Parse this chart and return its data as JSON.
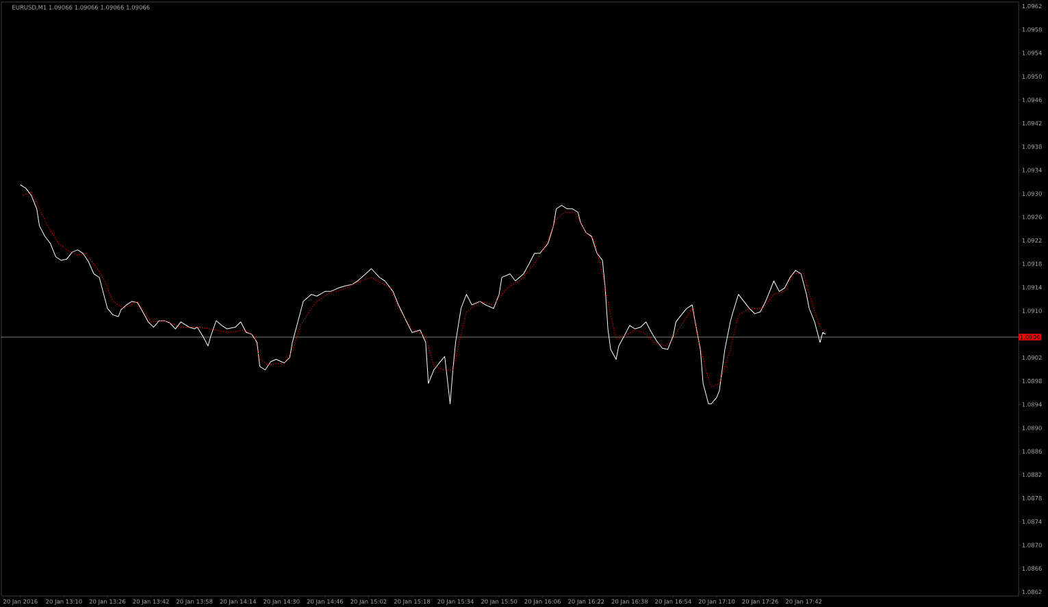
{
  "chart_data": {
    "type": "line",
    "title": "EURUSD,M1  1.09066 1.09066 1.09066 1.09066",
    "xlim": [
      "2016-01-20T12:47",
      "2016-01-20T19:01"
    ],
    "xticks": [
      {
        "value": "2016-01-20T12:54",
        "label": "20 Jan 2016"
      },
      {
        "value": "2016-01-20T13:10",
        "label": "20 Jan 13:10"
      },
      {
        "value": "2016-01-20T13:26",
        "label": "20 Jan 13:26"
      },
      {
        "value": "2016-01-20T13:42",
        "label": "20 Jan 13:42"
      },
      {
        "value": "2016-01-20T13:58",
        "label": "20 Jan 13:58"
      },
      {
        "value": "2016-01-20T14:14",
        "label": "20 Jan 14:14"
      },
      {
        "value": "2016-01-20T14:30",
        "label": "20 Jan 14:30"
      },
      {
        "value": "2016-01-20T14:46",
        "label": "20 Jan 14:46"
      },
      {
        "value": "2016-01-20T15:02",
        "label": "20 Jan 15:02"
      },
      {
        "value": "2016-01-20T15:18",
        "label": "20 Jan 15:18"
      },
      {
        "value": "2016-01-20T15:34",
        "label": "20 Jan 15:34"
      },
      {
        "value": "2016-01-20T15:50",
        "label": "20 Jan 15:50"
      },
      {
        "value": "2016-01-20T16:06",
        "label": "20 Jan 16:06"
      },
      {
        "value": "2016-01-20T16:22",
        "label": "20 Jan 16:22"
      },
      {
        "value": "2016-01-20T16:38",
        "label": "20 Jan 16:38"
      },
      {
        "value": "2016-01-20T16:54",
        "label": "20 Jan 16:54"
      },
      {
        "value": "2016-01-20T17:10",
        "label": "20 Jan 17:10"
      },
      {
        "value": "2016-01-20T17:26",
        "label": "20 Jan 17:26"
      },
      {
        "value": "2016-01-20T17:42",
        "label": "20 Jan 17:42"
      }
    ],
    "ylim": [
      1.08618,
      1.09632
    ],
    "yticks": [
      {
        "value": 1.09625,
        "label": "1.0962"
      },
      {
        "value": 1.09585,
        "label": "1.0958"
      },
      {
        "value": 1.09545,
        "label": "1.0954"
      },
      {
        "value": 1.09505,
        "label": "1.0950"
      },
      {
        "value": 1.09465,
        "label": "1.0946"
      },
      {
        "value": 1.09425,
        "label": "1.0942"
      },
      {
        "value": 1.09385,
        "label": "1.0938"
      },
      {
        "value": 1.09345,
        "label": "1.0934"
      },
      {
        "value": 1.09305,
        "label": "1.0930"
      },
      {
        "value": 1.09265,
        "label": "1.0926"
      },
      {
        "value": 1.09225,
        "label": "1.0922"
      },
      {
        "value": 1.09185,
        "label": "1.0918"
      },
      {
        "value": 1.09145,
        "label": "1.0914"
      },
      {
        "value": 1.09105,
        "label": "1.0910"
      },
      {
        "value": 1.09025,
        "label": "1.0902"
      },
      {
        "value": 1.08985,
        "label": "1.0898"
      },
      {
        "value": 1.08945,
        "label": "1.0894"
      },
      {
        "value": 1.08905,
        "label": "1.0890"
      },
      {
        "value": 1.08865,
        "label": "1.0886"
      },
      {
        "value": 1.08825,
        "label": "1.0882"
      },
      {
        "value": 1.08785,
        "label": "1.0878"
      },
      {
        "value": 1.08745,
        "label": "1.0874"
      },
      {
        "value": 1.08705,
        "label": "1.0870"
      },
      {
        "value": 1.08665,
        "label": "1.0866"
      },
      {
        "value": 1.08625,
        "label": "1.0862"
      }
    ],
    "ref_lines": [
      {
        "axis": "y",
        "value": 1.0906,
        "label": "1.0906",
        "color": "#999999"
      }
    ],
    "series": [
      {
        "color": "#ffffff",
        "line_style": "solid",
        "x": [
          "2016-01-20T12:54",
          "2016-01-20T12:56",
          "2016-01-20T12:58",
          "2016-01-20T13:00",
          "2016-01-20T13:01",
          "2016-01-20T13:03",
          "2016-01-20T13:05",
          "2016-01-20T13:07",
          "2016-01-20T13:09",
          "2016-01-20T13:11",
          "2016-01-20T13:13",
          "2016-01-20T13:15",
          "2016-01-20T13:17",
          "2016-01-20T13:19",
          "2016-01-20T13:21",
          "2016-01-20T13:23",
          "2016-01-20T13:24",
          "2016-01-20T13:26",
          "2016-01-20T13:28",
          "2016-01-20T13:30",
          "2016-01-20T13:31",
          "2016-01-20T13:33",
          "2016-01-20T13:35",
          "2016-01-20T13:37",
          "2016-01-20T13:39",
          "2016-01-20T13:41",
          "2016-01-20T13:43",
          "2016-01-20T13:45",
          "2016-01-20T13:47",
          "2016-01-20T13:49",
          "2016-01-20T13:51",
          "2016-01-20T13:53",
          "2016-01-20T13:56",
          "2016-01-20T13:58",
          "2016-01-20T13:59",
          "2016-01-20T14:01",
          "2016-01-20T14:03",
          "2016-01-20T14:04",
          "2016-01-20T14:06",
          "2016-01-20T14:08",
          "2016-01-20T14:10",
          "2016-01-20T14:13",
          "2016-01-20T14:15",
          "2016-01-20T14:17",
          "2016-01-20T14:19",
          "2016-01-20T14:21",
          "2016-01-20T14:22",
          "2016-01-20T14:24",
          "2016-01-20T14:26",
          "2016-01-20T14:28",
          "2016-01-20T14:31",
          "2016-01-20T14:33",
          "2016-01-20T14:34",
          "2016-01-20T14:36",
          "2016-01-20T14:38",
          "2016-01-20T14:41",
          "2016-01-20T14:43",
          "2016-01-20T14:46",
          "2016-01-20T14:48",
          "2016-01-20T14:51",
          "2016-01-20T14:53",
          "2016-01-20T14:56",
          "2016-01-20T14:58",
          "2016-01-20T15:01",
          "2016-01-20T15:03",
          "2016-01-20T15:06",
          "2016-01-20T15:08",
          "2016-01-20T15:11",
          "2016-01-20T15:13",
          "2016-01-20T15:16",
          "2016-01-20T15:18",
          "2016-01-20T15:21",
          "2016-01-20T15:23",
          "2016-01-20T15:24",
          "2016-01-20T15:26",
          "2016-01-20T15:28",
          "2016-01-20T15:30",
          "2016-01-20T15:32",
          "2016-01-20T15:33",
          "2016-01-20T15:34",
          "2016-01-20T15:36",
          "2016-01-20T15:38",
          "2016-01-20T15:40",
          "2016-01-20T15:43",
          "2016-01-20T15:45",
          "2016-01-20T15:48",
          "2016-01-20T15:50",
          "2016-01-20T15:51",
          "2016-01-20T15:54",
          "2016-01-20T15:56",
          "2016-01-20T15:59",
          "2016-01-20T16:01",
          "2016-01-20T16:03",
          "2016-01-20T16:05",
          "2016-01-20T16:08",
          "2016-01-20T16:10",
          "2016-01-20T16:11",
          "2016-01-20T16:13",
          "2016-01-20T16:15",
          "2016-01-20T16:17",
          "2016-01-20T16:19",
          "2016-01-20T16:20",
          "2016-01-20T16:22",
          "2016-01-20T16:24",
          "2016-01-20T16:26",
          "2016-01-20T16:28",
          "2016-01-20T16:29",
          "2016-01-20T16:30",
          "2016-01-20T16:31",
          "2016-01-20T16:33",
          "2016-01-20T16:34",
          "2016-01-20T16:36",
          "2016-01-20T16:38",
          "2016-01-20T16:40",
          "2016-01-20T16:42",
          "2016-01-20T16:44",
          "2016-01-20T16:46",
          "2016-01-20T16:48",
          "2016-01-20T16:50",
          "2016-01-20T16:52",
          "2016-01-20T16:54",
          "2016-01-20T16:55",
          "2016-01-20T16:57",
          "2016-01-20T16:59",
          "2016-01-20T17:01",
          "2016-01-20T17:02",
          "2016-01-20T17:04",
          "2016-01-20T17:05",
          "2016-01-20T17:07",
          "2016-01-20T17:08",
          "2016-01-20T17:10",
          "2016-01-20T17:11",
          "2016-01-20T17:13",
          "2016-01-20T17:15",
          "2016-01-20T17:16",
          "2016-01-20T17:18",
          "2016-01-20T17:20",
          "2016-01-20T17:22",
          "2016-01-20T17:24",
          "2016-01-20T17:26",
          "2016-01-20T17:28",
          "2016-01-20T17:30",
          "2016-01-20T17:31",
          "2016-01-20T17:33",
          "2016-01-20T17:35",
          "2016-01-20T17:37",
          "2016-01-20T17:39",
          "2016-01-20T17:41",
          "2016-01-20T17:43",
          "2016-01-20T17:44",
          "2016-01-20T17:46",
          "2016-01-20T17:48",
          "2016-01-20T17:49",
          "2016-01-20T17:50"
        ],
        "values": [
          1.0932,
          1.09314,
          1.09302,
          1.09279,
          1.0925,
          1.09232,
          1.0922,
          1.09197,
          1.09191,
          1.09193,
          1.09205,
          1.09209,
          1.09203,
          1.09189,
          1.09168,
          1.09162,
          1.09144,
          1.09109,
          1.09098,
          1.09095,
          1.09107,
          1.09115,
          1.09121,
          1.09119,
          1.09103,
          1.09086,
          1.09077,
          1.09088,
          1.09088,
          1.09084,
          1.09074,
          1.09086,
          1.09077,
          1.09074,
          1.09077,
          1.09062,
          1.09045,
          1.09062,
          1.09088,
          1.0908,
          1.09074,
          1.09077,
          1.09086,
          1.09068,
          1.09065,
          1.09051,
          1.0901,
          1.09004,
          1.09018,
          1.09022,
          1.09016,
          1.09025,
          1.09051,
          1.09086,
          1.09121,
          1.09133,
          1.0913,
          1.09138,
          1.09138,
          1.09144,
          1.09147,
          1.0915,
          1.09156,
          1.09168,
          1.09177,
          1.09162,
          1.09156,
          1.09138,
          1.09115,
          1.09086,
          1.09068,
          1.09072,
          1.09051,
          1.08981,
          1.09004,
          1.09016,
          1.09027,
          1.08946,
          1.09004,
          1.09051,
          1.09109,
          1.09133,
          1.09115,
          1.09121,
          1.09115,
          1.09109,
          1.09133,
          1.09162,
          1.09168,
          1.09156,
          1.09168,
          1.09185,
          1.09203,
          1.09203,
          1.0922,
          1.0925,
          1.09279,
          1.09285,
          1.09279,
          1.09279,
          1.09273,
          1.09255,
          1.09238,
          1.09232,
          1.09203,
          1.09191,
          1.09144,
          1.09074,
          1.09039,
          1.09022,
          1.09045,
          1.09062,
          1.0908,
          1.09074,
          1.09077,
          1.09086,
          1.09068,
          1.09053,
          1.09041,
          1.09039,
          1.09062,
          1.09086,
          1.09098,
          1.09109,
          1.09115,
          1.09088,
          1.09039,
          1.08981,
          1.08946,
          1.08946,
          1.08957,
          1.08969,
          1.09039,
          1.09086,
          1.09103,
          1.09133,
          1.09121,
          1.09109,
          1.091,
          1.09103,
          1.09121,
          1.09144,
          1.09156,
          1.09138,
          1.09144,
          1.09162,
          1.09174,
          1.09168,
          1.09133,
          1.09109,
          1.09086,
          1.09051,
          1.09068,
          1.09065
        ]
      },
      {
        "color": "#ff0000",
        "line_style": "dotted",
        "x": [
          "2016-01-20T12:55",
          "2016-01-20T12:58",
          "2016-01-20T13:01",
          "2016-01-20T13:04",
          "2016-01-20T13:08",
          "2016-01-20T13:11",
          "2016-01-20T13:15",
          "2016-01-20T13:18",
          "2016-01-20T13:22",
          "2016-01-20T13:25",
          "2016-01-20T13:28",
          "2016-01-20T13:32",
          "2016-01-20T13:37",
          "2016-01-20T13:42",
          "2016-01-20T13:47",
          "2016-01-20T13:53",
          "2016-01-20T14:00",
          "2016-01-20T14:06",
          "2016-01-20T14:11",
          "2016-01-20T14:16",
          "2016-01-20T14:20",
          "2016-01-20T14:22",
          "2016-01-20T14:25",
          "2016-01-20T14:31",
          "2016-01-20T14:34",
          "2016-01-20T14:37",
          "2016-01-20T14:41",
          "2016-01-20T14:43",
          "2016-01-20T14:48",
          "2016-01-20T14:53",
          "2016-01-20T14:58",
          "2016-01-20T15:03",
          "2016-01-20T15:10",
          "2016-01-20T15:13",
          "2016-01-20T15:18",
          "2016-01-20T15:23",
          "2016-01-20T15:26",
          "2016-01-20T15:30",
          "2016-01-20T15:33",
          "2016-01-20T15:35",
          "2016-01-20T15:38",
          "2016-01-20T15:43",
          "2016-01-20T15:48",
          "2016-01-20T15:53",
          "2016-01-20T15:58",
          "2016-01-20T16:03",
          "2016-01-20T16:07",
          "2016-01-20T16:11",
          "2016-01-20T16:14",
          "2016-01-20T16:18",
          "2016-01-20T16:22",
          "2016-01-20T16:25",
          "2016-01-20T16:28",
          "2016-01-20T16:31",
          "2016-01-20T16:33",
          "2016-01-20T16:36",
          "2016-01-20T16:40",
          "2016-01-20T16:43",
          "2016-01-20T16:47",
          "2016-01-20T16:51",
          "2016-01-20T16:53",
          "2016-01-20T16:57",
          "2016-01-20T17:01",
          "2016-01-20T17:03",
          "2016-01-20T17:06",
          "2016-01-20T17:08",
          "2016-01-20T17:11",
          "2016-01-20T17:15",
          "2016-01-20T17:18",
          "2016-01-20T17:22",
          "2016-01-20T17:27",
          "2016-01-20T17:31",
          "2016-01-20T17:35",
          "2016-01-20T17:38",
          "2016-01-20T17:42",
          "2016-01-20T17:44",
          "2016-01-20T17:48",
          "2016-01-20T17:50"
        ],
        "values": [
          1.09302,
          1.09308,
          1.09279,
          1.0925,
          1.0922,
          1.09209,
          1.092,
          1.09203,
          1.09179,
          1.09156,
          1.09121,
          1.09109,
          1.09121,
          1.09086,
          1.09088,
          1.09077,
          1.09077,
          1.09072,
          1.09068,
          1.09072,
          1.09062,
          1.09022,
          1.09013,
          1.09016,
          1.09037,
          1.0908,
          1.09109,
          1.09121,
          1.09136,
          1.09142,
          1.09154,
          1.09162,
          1.09144,
          1.09109,
          1.09074,
          1.09062,
          1.0901,
          1.09004,
          1.09004,
          1.09045,
          1.09103,
          1.09121,
          1.09115,
          1.09144,
          1.09158,
          1.09185,
          1.09215,
          1.09261,
          1.09273,
          1.09273,
          1.09238,
          1.09226,
          1.09168,
          1.09098,
          1.09057,
          1.09062,
          1.09072,
          1.09068,
          1.09051,
          1.09045,
          1.09051,
          1.0908,
          1.09109,
          1.09062,
          1.09004,
          1.08975,
          1.08981,
          1.09039,
          1.09098,
          1.09109,
          1.09109,
          1.09133,
          1.09138,
          1.09168,
          1.09168,
          1.09133,
          1.09077,
          1.09068
        ]
      }
    ]
  }
}
